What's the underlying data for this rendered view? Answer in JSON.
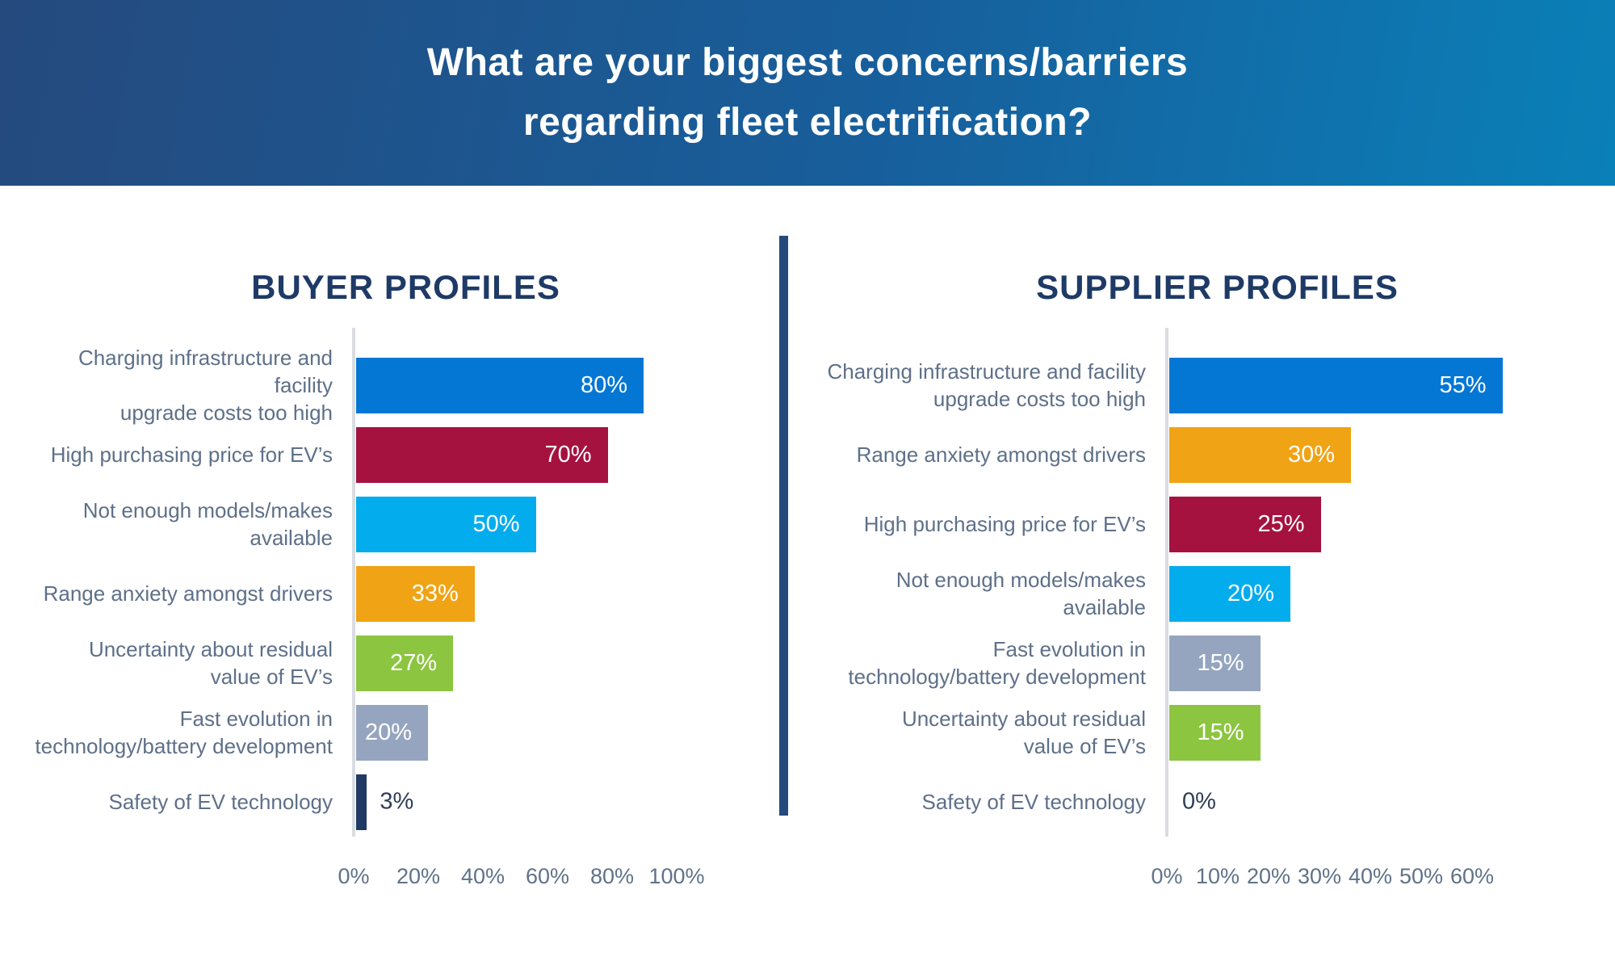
{
  "header": {
    "title_lines": [
      "What are your biggest concerns/barriers",
      "regarding fleet electrification?"
    ]
  },
  "styles": {
    "header_gradient_start": "#254a7e",
    "header_gradient_end": "#0a80b8",
    "panel_title_color": "#1e3a66",
    "divider_color": "#26497c",
    "category_label_color": "#5e7089",
    "tick_label_color": "#5f7289",
    "axis_line_color": "#d9dce1",
    "value_label_inside_color": "#ffffff",
    "value_label_outside_color": "#2f3e55"
  },
  "chart_data": [
    {
      "type": "bar",
      "orientation": "horizontal",
      "title": "BUYER PROFILES",
      "categories": [
        "Charging infrastructure and facility upgrade costs too high",
        "High purchasing price for EV’s",
        "Not enough models/makes available",
        "Range anxiety amongst drivers",
        "Uncertainty about residual value of EV’s",
        "Fast evolution in technology/battery development",
        "Safety of EV technology"
      ],
      "label_lines": [
        [
          "Charging infrastructure and facility",
          "upgrade costs too high"
        ],
        [
          "High purchasing price for EV’s"
        ],
        [
          "Not enough models/makes",
          "available"
        ],
        [
          "Range anxiety amongst drivers"
        ],
        [
          "Uncertainty about residual",
          "value of EV’s"
        ],
        [
          "Fast evolution in",
          "technology/battery development"
        ],
        [
          "Safety of EV technology"
        ]
      ],
      "values": [
        80,
        70,
        50,
        33,
        27,
        20,
        3
      ],
      "value_labels": [
        "80%",
        "70%",
        "50%",
        "33%",
        "27%",
        "20%",
        "3%"
      ],
      "bar_colors": [
        "#0477d4",
        "#a5123f",
        "#03aded",
        "#f0a314",
        "#8cc540",
        "#95a5bf",
        "#203a64"
      ],
      "xlabel": "",
      "ylabel": "",
      "xlim": [
        0,
        100
      ],
      "xticks": [
        0,
        20,
        40,
        60,
        80,
        100
      ],
      "xtick_labels": [
        "0%",
        "20%",
        "40%",
        "60%",
        "80%",
        "100%"
      ],
      "grid": false,
      "legend": false
    },
    {
      "type": "bar",
      "orientation": "horizontal",
      "title": "SUPPLIER PROFILES",
      "categories": [
        "Charging infrastructure and facility upgrade costs too high",
        "Range anxiety amongst drivers",
        "High purchasing price for EV’s",
        "Not enough models/makes available",
        "Fast evolution in technology/battery development",
        "Uncertainty about residual value of EV’s",
        "Safety of EV technology"
      ],
      "label_lines": [
        [
          "Charging infrastructure and facility",
          "upgrade costs too high"
        ],
        [
          "Range anxiety amongst drivers"
        ],
        [
          "High purchasing price for EV’s"
        ],
        [
          "Not enough models/makes",
          "available"
        ],
        [
          "Fast evolution in",
          "technology/battery development"
        ],
        [
          "Uncertainty about residual",
          "value of EV’s"
        ],
        [
          "Safety of EV technology"
        ]
      ],
      "values": [
        55,
        30,
        25,
        20,
        15,
        15,
        0
      ],
      "value_labels": [
        "55%",
        "30%",
        "25%",
        "20%",
        "15%",
        "15%",
        "0%"
      ],
      "bar_colors": [
        "#0477d4",
        "#f0a314",
        "#a5123f",
        "#03aded",
        "#95a5bf",
        "#8cc540",
        "#203a64"
      ],
      "xlabel": "",
      "ylabel": "",
      "xlim": [
        0,
        60
      ],
      "xticks": [
        0,
        10,
        20,
        30,
        40,
        50,
        60
      ],
      "xtick_labels": [
        "0%",
        "10%",
        "20%",
        "30%",
        "40%",
        "50%",
        "60%"
      ],
      "grid": false,
      "legend": false
    }
  ]
}
